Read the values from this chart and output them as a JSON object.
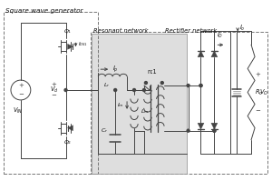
{
  "title_swg": "Square wave generator",
  "title_resonant": "Resonant network",
  "title_rectifier": "Rectifier network",
  "bg_color": "#ffffff",
  "line_color": "#444444",
  "box_fill": "#e0e0e0",
  "text_color": "#111111",
  "figsize": [
    3.0,
    1.99
  ],
  "dpi": 100
}
